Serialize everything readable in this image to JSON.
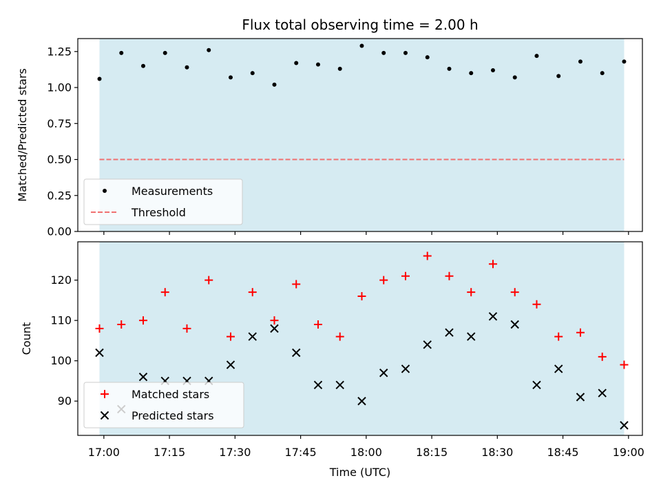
{
  "chart_data": [
    {
      "type": "scatter",
      "title": "Flux total observing time = 2.00 h",
      "xlabel": "",
      "ylabel": "Matched/Predicted stars",
      "ylim": [
        0.0,
        1.34
      ],
      "y_ticks": [
        0.0,
        0.25,
        0.5,
        0.75,
        1.0,
        1.25
      ],
      "y_tick_labels": [
        "0.00",
        "0.25",
        "0.50",
        "0.75",
        "1.00",
        "1.25"
      ],
      "grid": false,
      "legend_position": "lower-left",
      "shaded_region": {
        "from": "16:59",
        "to": "18:59",
        "color": "#add8e6"
      },
      "series": [
        {
          "name": "Measurements",
          "marker": "dot",
          "color": "#000000",
          "x": [
            "16:59",
            "17:04",
            "17:09",
            "17:14",
            "17:19",
            "17:24",
            "17:29",
            "17:34",
            "17:39",
            "17:44",
            "17:49",
            "17:54",
            "17:59",
            "18:04",
            "18:09",
            "18:14",
            "18:19",
            "18:24",
            "18:29",
            "18:34",
            "18:39",
            "18:44",
            "18:49",
            "18:54",
            "18:59"
          ],
          "y": [
            1.06,
            1.24,
            1.15,
            1.24,
            1.14,
            1.26,
            1.07,
            1.1,
            1.02,
            1.17,
            1.16,
            1.13,
            1.29,
            1.24,
            1.24,
            1.21,
            1.13,
            1.1,
            1.12,
            1.07,
            1.22,
            1.08,
            1.18,
            1.1,
            1.18
          ]
        },
        {
          "name": "Threshold",
          "type": "hline",
          "style": "dashed",
          "color": "#f07070",
          "x": [
            "16:59",
            "18:59"
          ],
          "y": [
            0.5,
            0.5
          ]
        }
      ]
    },
    {
      "type": "scatter",
      "title": "",
      "xlabel": "Time (UTC)",
      "ylabel": "Count",
      "ylim": [
        81.5,
        129.5
      ],
      "y_ticks": [
        90,
        100,
        110,
        120
      ],
      "y_tick_labels": [
        "90",
        "100",
        "110",
        "120"
      ],
      "x_ticks": [
        "17:00",
        "17:15",
        "17:30",
        "17:45",
        "18:00",
        "18:15",
        "18:30",
        "18:45",
        "19:00"
      ],
      "grid": false,
      "legend_position": "lower-left",
      "shaded_region": {
        "from": "16:59",
        "to": "18:59",
        "color": "#add8e6"
      },
      "series": [
        {
          "name": "Matched stars",
          "marker": "plus",
          "color": "#ff0000",
          "x": [
            "16:59",
            "17:04",
            "17:09",
            "17:14",
            "17:19",
            "17:24",
            "17:29",
            "17:34",
            "17:39",
            "17:44",
            "17:49",
            "17:54",
            "17:59",
            "18:04",
            "18:09",
            "18:14",
            "18:19",
            "18:24",
            "18:29",
            "18:34",
            "18:39",
            "18:44",
            "18:49",
            "18:54",
            "18:59"
          ],
          "y": [
            108,
            109,
            110,
            117,
            108,
            120,
            106,
            117,
            110,
            119,
            109,
            106,
            116,
            120,
            121,
            126,
            121,
            117,
            124,
            117,
            114,
            106,
            107,
            101,
            99
          ]
        },
        {
          "name": "Predicted stars",
          "marker": "x",
          "color": "#000000",
          "x": [
            "16:59",
            "17:04",
            "17:09",
            "17:14",
            "17:19",
            "17:24",
            "17:29",
            "17:34",
            "17:39",
            "17:44",
            "17:49",
            "17:54",
            "17:59",
            "18:04",
            "18:09",
            "18:14",
            "18:19",
            "18:24",
            "18:29",
            "18:34",
            "18:39",
            "18:44",
            "18:49",
            "18:54",
            "18:59"
          ],
          "y": [
            102,
            88,
            96,
            95,
            95,
            95,
            99,
            106,
            108,
            102,
            94,
            94,
            90,
            97,
            98,
            104,
            107,
            106,
            111,
            109,
            94,
            98,
            91,
            92,
            84
          ]
        }
      ]
    }
  ]
}
